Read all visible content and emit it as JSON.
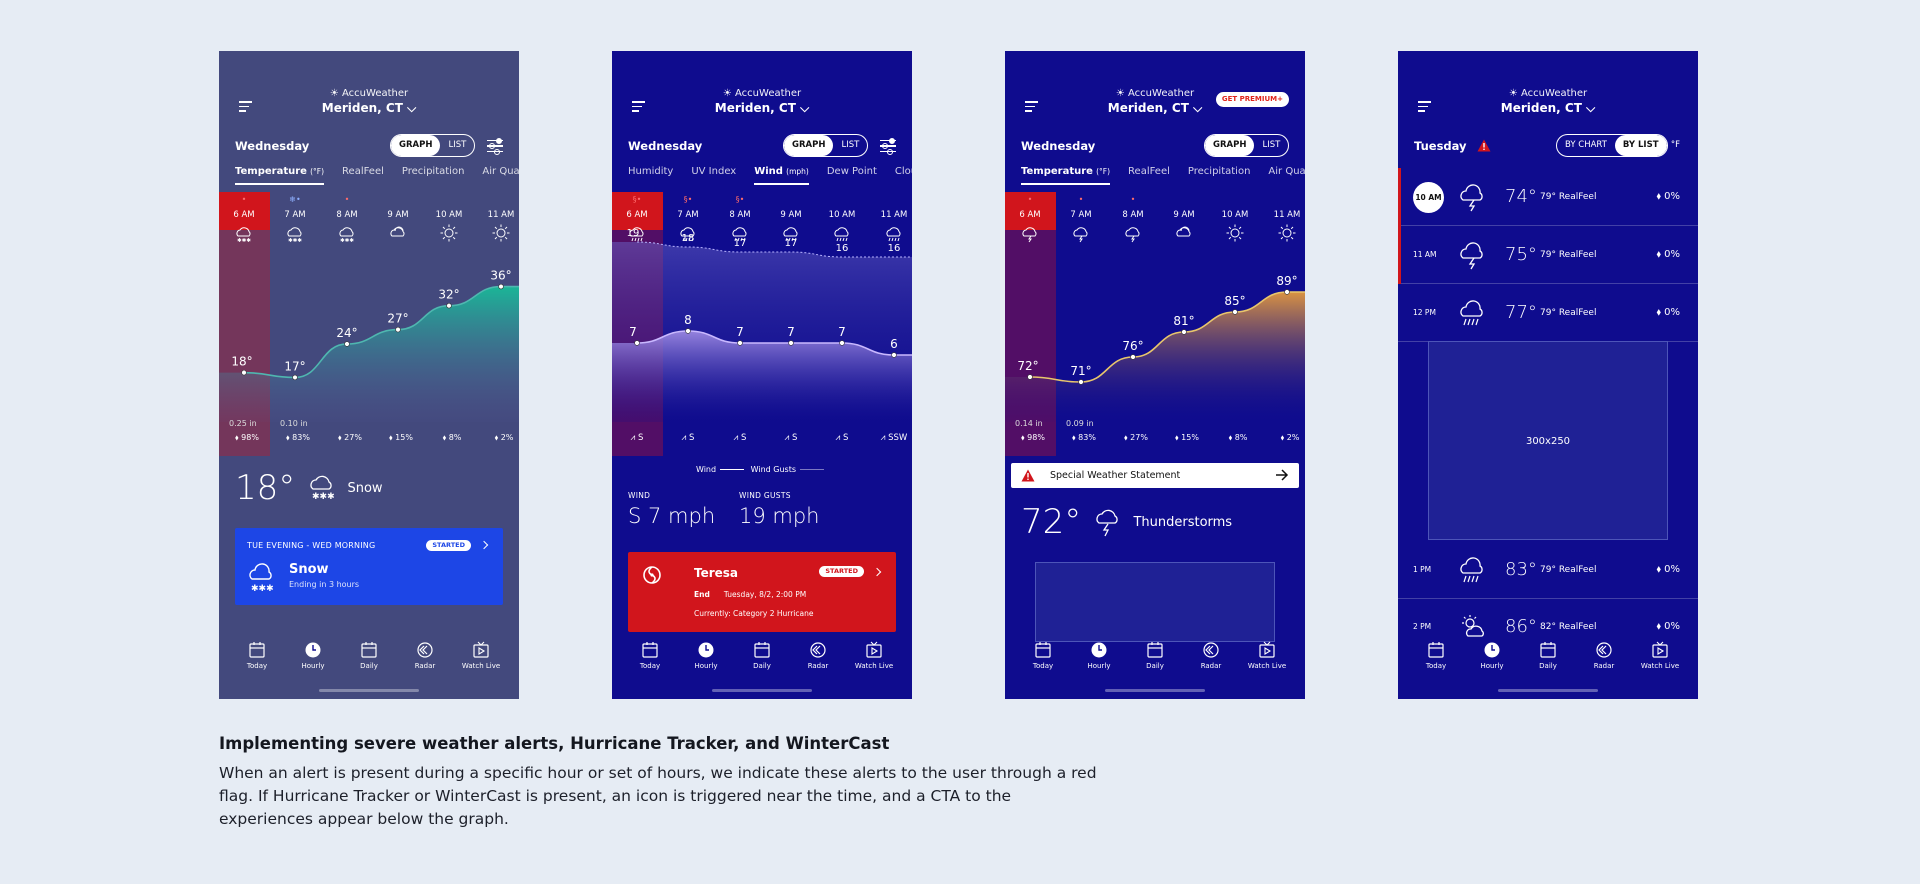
{
  "brand": "AccuWeather",
  "city": "Meriden, CT",
  "colors": {
    "alert_red": "#d1151c",
    "phone1_bg": "#43497d",
    "navy": "#0f0c8e",
    "wintercast_blue": "#1d46e6"
  },
  "nav": [
    {
      "label": "Today",
      "icon": "calendar-icon"
    },
    {
      "label": "Hourly",
      "icon": "clock-icon"
    },
    {
      "label": "Daily",
      "icon": "calendar-icon"
    },
    {
      "label": "Radar",
      "icon": "radar-icon"
    },
    {
      "label": "Watch Live",
      "icon": "play-icon"
    }
  ],
  "phone1": {
    "day": "Wednesday",
    "view_graph": "GRAPH",
    "view_list": "LIST",
    "tabs": [
      "Temperature",
      "RealFeel",
      "Precipitation",
      "Air Quality"
    ],
    "tab_unit": "(°F)",
    "hours": [
      "6 AM",
      "7 AM",
      "8 AM",
      "9 AM",
      "10 AM",
      "11 AM"
    ],
    "temps": [
      18,
      17,
      24,
      27,
      32,
      36
    ],
    "temp_labels": [
      "18°",
      "17°",
      "24°",
      "27°",
      "32°",
      "36°"
    ],
    "amounts": [
      "0.25 in",
      "0.10 in",
      "",
      "",
      "",
      ""
    ],
    "precip": [
      "98%",
      "83%",
      "27%",
      "15%",
      "8%",
      "2%"
    ],
    "current": {
      "temp": "18°",
      "cond": "Snow"
    },
    "wintercast": {
      "period": "TUE EVENING - WED MORNING",
      "badge": "STARTED",
      "title": "Snow",
      "sub": "Ending in 3 hours"
    }
  },
  "phone2": {
    "day": "Wednesday",
    "view_graph": "GRAPH",
    "view_list": "LIST",
    "tabs": [
      "Humidity",
      "UV Index",
      "Wind",
      "Dew Point",
      "Cloud"
    ],
    "tab_unit": "(mph)",
    "hours": [
      "6 AM",
      "7 AM",
      "8 AM",
      "9 AM",
      "10 AM",
      "11 AM"
    ],
    "gusts": [
      19,
      18,
      17,
      17,
      16,
      16
    ],
    "wind": [
      7,
      8,
      7,
      7,
      7,
      6
    ],
    "dirs": [
      "S",
      "S",
      "S",
      "S",
      "S",
      "SSW"
    ],
    "legend_wind": "Wind",
    "legend_gusts": "Wind Gusts",
    "wind_label": "WIND",
    "wind_value": "S 7 mph",
    "gust_label": "WIND GUSTS",
    "gust_value": "19 mph",
    "hurricane": {
      "name": "Teresa",
      "badge": "STARTED",
      "end_label": "End",
      "end_value": "Tuesday, 8/2, 2:00 PM",
      "status": "Currently: Category 2 Hurricane"
    }
  },
  "phone3": {
    "premium": "GET PREMIUM+",
    "day": "Wednesday",
    "view_graph": "GRAPH",
    "view_list": "LIST",
    "tabs": [
      "Temperature",
      "RealFeel",
      "Precipitation",
      "Air Quality"
    ],
    "tab_unit": "(°F)",
    "hours": [
      "6 AM",
      "7 AM",
      "8 AM",
      "9 AM",
      "10 AM",
      "11 AM"
    ],
    "temps": [
      72,
      71,
      76,
      81,
      85,
      89
    ],
    "temp_labels": [
      "72°",
      "71°",
      "76°",
      "81°",
      "85°",
      "89°"
    ],
    "amounts": [
      "0.14 in",
      "0.09 in",
      "",
      "",
      "",
      ""
    ],
    "precip": [
      "98%",
      "83%",
      "27%",
      "15%",
      "8%",
      "2%"
    ],
    "alert": "Special Weather Statement",
    "current": {
      "temp": "72°",
      "cond": "Thunderstorms"
    }
  },
  "phone4": {
    "day": "Tuesday",
    "by_chart": "BY CHART",
    "by_list": "BY LIST",
    "unit": "°F",
    "rows": [
      {
        "time": "10 AM",
        "temp": "74°",
        "realfeel": "79° RealFeel",
        "precip": "0%",
        "alert": true,
        "icon": "thunderstorm-icon"
      },
      {
        "time": "11 AM",
        "temp": "75°",
        "realfeel": "79° RealFeel",
        "precip": "0%",
        "alert": true,
        "icon": "thunderstorm-icon"
      },
      {
        "time": "12 PM",
        "temp": "77°",
        "realfeel": "79° RealFeel",
        "precip": "0%",
        "alert": false,
        "icon": "rain-icon"
      },
      {
        "time": "1 PM",
        "temp": "83°",
        "realfeel": "79° RealFeel",
        "precip": "0%",
        "alert": false,
        "icon": "rain-icon"
      },
      {
        "time": "2 PM",
        "temp": "86°",
        "realfeel": "82° RealFeel",
        "precip": "0%",
        "alert": false,
        "icon": "partly-sunny-icon"
      }
    ],
    "ad": "300x250"
  },
  "caption": {
    "title": "Implementing severe weather alerts, Hurricane Tracker, and WinterCast",
    "body": "When an alert is present during a specific hour or set of hours, we indicate these alerts to the user through a red flag. If Hurricane Tracker or WinterCast is present, an icon is triggered near the time, and a CTA to the experiences appear below the graph."
  }
}
